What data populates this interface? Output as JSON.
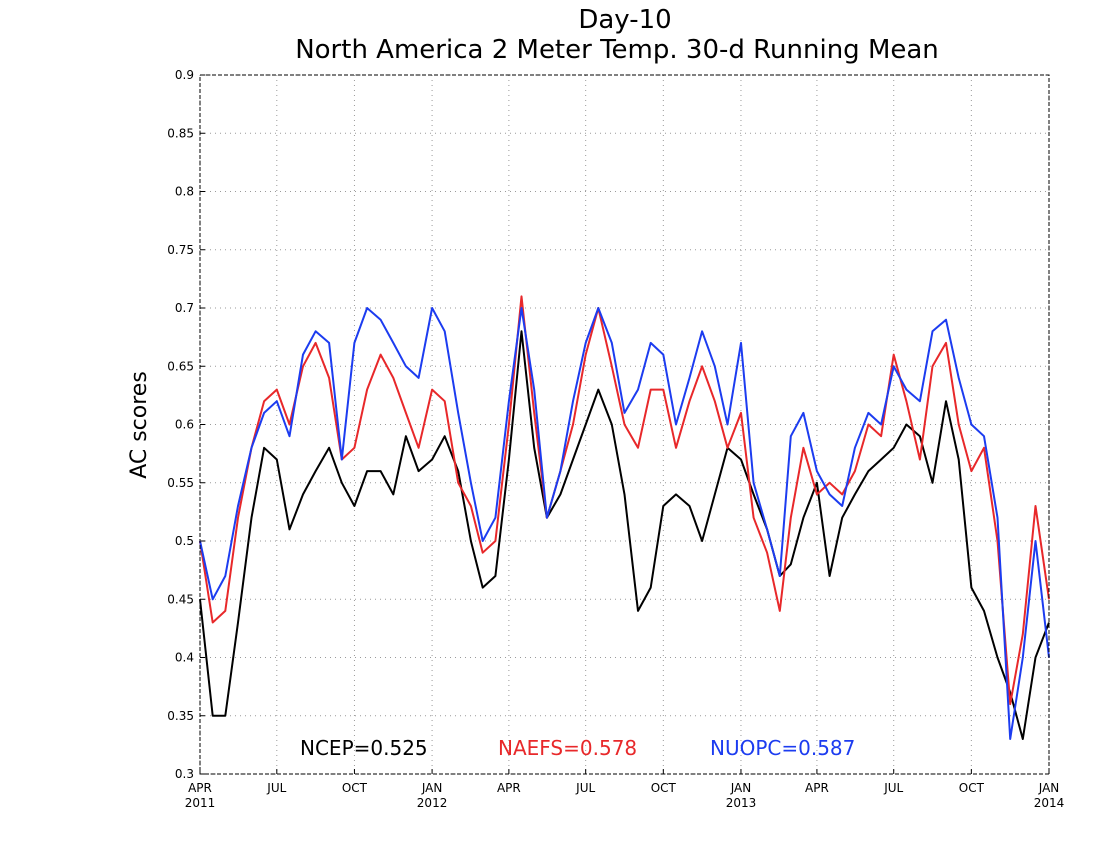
{
  "chart_data": {
    "type": "line",
    "title": "Day-10",
    "subtitle": "North America 2 Meter Temp. 30-d Running Mean",
    "xlabel": "",
    "ylabel": "AC scores",
    "ylim": [
      0.3,
      0.9
    ],
    "yticks": [
      "0.3",
      "0.35",
      "0.4",
      "0.45",
      "0.5",
      "0.55",
      "0.6",
      "0.65",
      "0.7",
      "0.75",
      "0.8",
      "0.85",
      "0.9"
    ],
    "xlim": [
      "2011-04-01",
      "2014-01-01"
    ],
    "xticks": [
      {
        "date": "2011-04-01",
        "label": "APR",
        "year": "2011"
      },
      {
        "date": "2011-07-01",
        "label": "JUL",
        "year": ""
      },
      {
        "date": "2011-10-01",
        "label": "OCT",
        "year": ""
      },
      {
        "date": "2012-01-01",
        "label": "JAN",
        "year": "2012"
      },
      {
        "date": "2012-04-01",
        "label": "APR",
        "year": ""
      },
      {
        "date": "2012-07-01",
        "label": "JUL",
        "year": ""
      },
      {
        "date": "2012-10-01",
        "label": "OCT",
        "year": ""
      },
      {
        "date": "2013-01-01",
        "label": "JAN",
        "year": "2013"
      },
      {
        "date": "2013-04-01",
        "label": "APR",
        "year": ""
      },
      {
        "date": "2013-07-01",
        "label": "JUL",
        "year": ""
      },
      {
        "date": "2013-10-01",
        "label": "OCT",
        "year": ""
      },
      {
        "date": "2014-01-01",
        "label": "JAN",
        "year": "2014"
      }
    ],
    "grid": true,
    "legend_position": "bottom",
    "x": [
      "2011-04-01",
      "2011-04-16",
      "2011-05-01",
      "2011-05-16",
      "2011-06-01",
      "2011-06-16",
      "2011-07-01",
      "2011-07-16",
      "2011-08-01",
      "2011-08-16",
      "2011-09-01",
      "2011-09-16",
      "2011-10-01",
      "2011-10-16",
      "2011-11-01",
      "2011-11-16",
      "2011-12-01",
      "2011-12-16",
      "2012-01-01",
      "2012-01-16",
      "2012-02-01",
      "2012-02-16",
      "2012-03-01",
      "2012-03-16",
      "2012-04-01",
      "2012-04-16",
      "2012-05-01",
      "2012-05-16",
      "2012-06-01",
      "2012-06-16",
      "2012-07-01",
      "2012-07-16",
      "2012-08-01",
      "2012-08-16",
      "2012-09-01",
      "2012-09-16",
      "2012-10-01",
      "2012-10-16",
      "2012-11-01",
      "2012-11-16",
      "2012-12-01",
      "2012-12-16",
      "2013-01-01",
      "2013-01-16",
      "2013-02-01",
      "2013-02-16",
      "2013-03-01",
      "2013-03-16",
      "2013-04-01",
      "2013-04-16",
      "2013-05-01",
      "2013-05-16",
      "2013-06-01",
      "2013-06-16",
      "2013-07-01",
      "2013-07-16",
      "2013-08-01",
      "2013-08-16",
      "2013-09-01",
      "2013-09-16",
      "2013-10-01",
      "2013-10-16",
      "2013-11-01",
      "2013-11-16",
      "2013-12-01",
      "2013-12-16",
      "2014-01-01"
    ],
    "series": [
      {
        "name": "NCEP",
        "color": "#000000",
        "values": [
          0.45,
          0.35,
          0.35,
          0.43,
          0.52,
          0.58,
          0.57,
          0.51,
          0.54,
          0.56,
          0.58,
          0.55,
          0.53,
          0.56,
          0.56,
          0.54,
          0.59,
          0.56,
          0.57,
          0.59,
          0.56,
          0.5,
          0.46,
          0.47,
          0.57,
          0.68,
          0.58,
          0.52,
          0.54,
          0.57,
          0.6,
          0.63,
          0.6,
          0.54,
          0.44,
          0.46,
          0.53,
          0.54,
          0.53,
          0.5,
          0.54,
          0.58,
          0.57,
          0.54,
          0.51,
          0.47,
          0.48,
          0.52,
          0.55,
          0.47,
          0.52,
          0.54,
          0.56,
          0.57,
          0.58,
          0.6,
          0.59,
          0.55,
          0.62,
          0.57,
          0.46,
          0.44,
          0.4,
          0.37,
          0.33,
          0.4,
          0.43
        ]
      },
      {
        "name": "NAEFS",
        "color": "#e8282a",
        "values": [
          0.5,
          0.43,
          0.44,
          0.52,
          0.58,
          0.62,
          0.63,
          0.6,
          0.65,
          0.67,
          0.64,
          0.57,
          0.58,
          0.63,
          0.66,
          0.64,
          0.61,
          0.58,
          0.63,
          0.62,
          0.55,
          0.53,
          0.49,
          0.5,
          0.6,
          0.71,
          0.61,
          0.52,
          0.56,
          0.6,
          0.66,
          0.7,
          0.65,
          0.6,
          0.58,
          0.63,
          0.63,
          0.58,
          0.62,
          0.65,
          0.62,
          0.58,
          0.61,
          0.52,
          0.49,
          0.44,
          0.52,
          0.58,
          0.54,
          0.55,
          0.54,
          0.56,
          0.6,
          0.59,
          0.66,
          0.62,
          0.57,
          0.65,
          0.67,
          0.6,
          0.56,
          0.58,
          0.5,
          0.36,
          0.42,
          0.53,
          0.45
        ]
      },
      {
        "name": "NUOPC",
        "color": "#1c3cf0",
        "values": [
          0.5,
          0.45,
          0.47,
          0.53,
          0.58,
          0.61,
          0.62,
          0.59,
          0.66,
          0.68,
          0.67,
          0.57,
          0.67,
          0.7,
          0.69,
          0.67,
          0.65,
          0.64,
          0.7,
          0.68,
          0.61,
          0.55,
          0.5,
          0.52,
          0.62,
          0.7,
          0.63,
          0.52,
          0.56,
          0.62,
          0.67,
          0.7,
          0.67,
          0.61,
          0.63,
          0.67,
          0.66,
          0.6,
          0.64,
          0.68,
          0.65,
          0.6,
          0.67,
          0.55,
          0.51,
          0.47,
          0.59,
          0.61,
          0.56,
          0.54,
          0.53,
          0.58,
          0.61,
          0.6,
          0.65,
          0.63,
          0.62,
          0.68,
          0.69,
          0.64,
          0.6,
          0.59,
          0.52,
          0.33,
          0.4,
          0.5,
          0.4
        ]
      }
    ],
    "legend": [
      {
        "label": "NCEP=0.525",
        "color": "#000000"
      },
      {
        "label": "NAEFS=0.578",
        "color": "#e8282a"
      },
      {
        "label": "NUOPC=0.587",
        "color": "#1c3cf0"
      }
    ]
  }
}
